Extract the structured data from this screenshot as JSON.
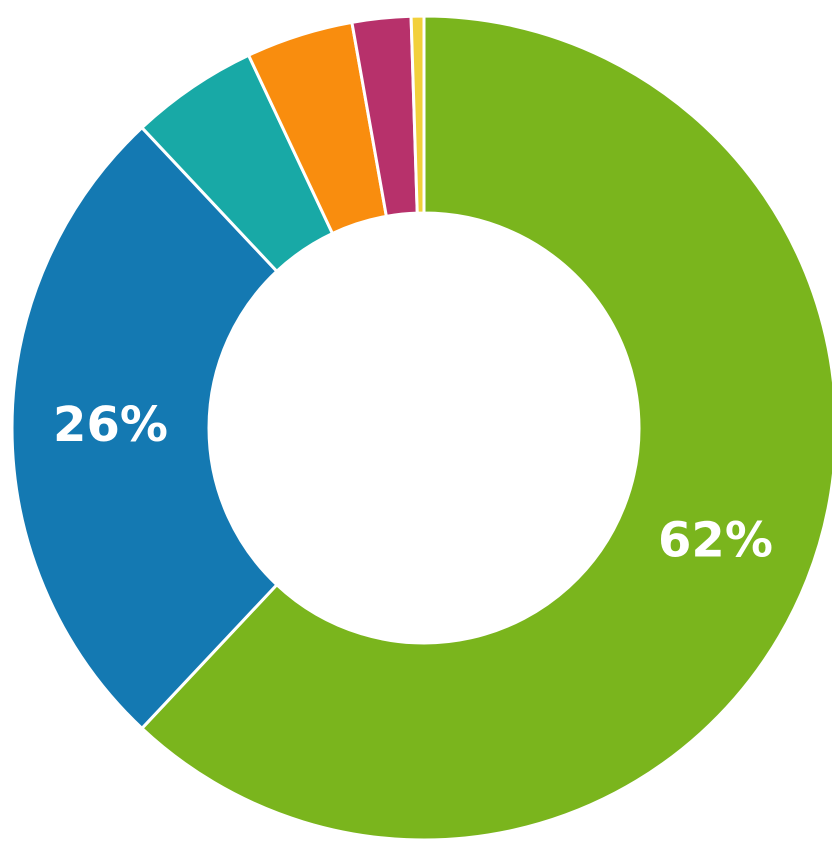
{
  "chart_data": {
    "type": "donut",
    "values": [
      62,
      26,
      5,
      4.2,
      2.3,
      0.5
    ],
    "value_labels": [
      "62%",
      "26%",
      null,
      null,
      null,
      null
    ],
    "colors": [
      "#7ab51d",
      "#1479b2",
      "#18a9a6",
      "#f98d0e",
      "#b7316b",
      "#f2d03b"
    ]
  }
}
